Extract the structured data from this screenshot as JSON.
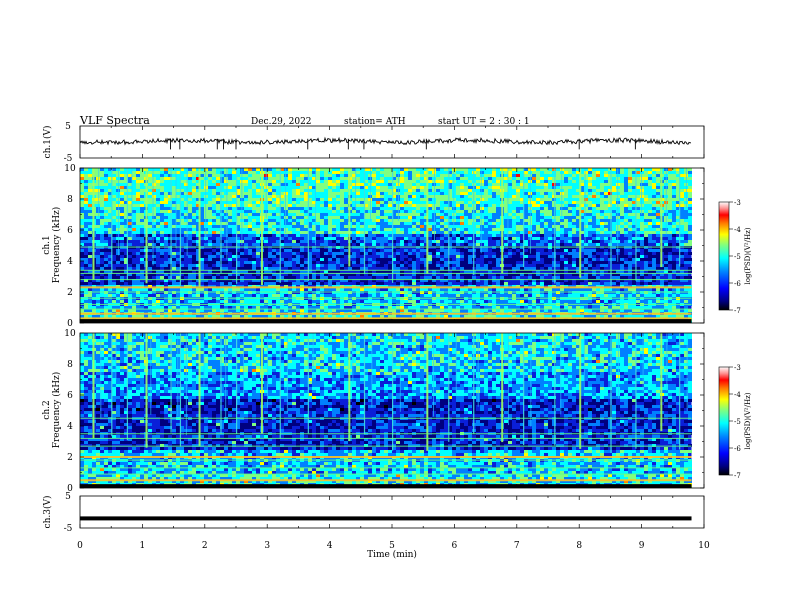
{
  "header": {
    "title": "VLF  Spectra",
    "date": "Dec.29, 2022",
    "station": "station= ATH",
    "start_ut": "start  UT  =   2  : 30 : 1"
  },
  "colorbar_colors": [
    "#000000",
    "#00007f",
    "#0000ff",
    "#0080ff",
    "#00ffff",
    "#80ff80",
    "#ffff00",
    "#ff8000",
    "#ff0000",
    "#7f0000",
    "#ffffff"
  ],
  "chart_data": [
    {
      "type": "line",
      "name": "ch1-waveform",
      "ylabel": "ch.1(V)",
      "ylim": [
        -5,
        5
      ],
      "yticks": [
        "5",
        "-5"
      ],
      "x_range_min": [
        0,
        9.8
      ],
      "mean_value": 0.2,
      "spikes_min": [
        1.45,
        1.6,
        2.2,
        2.3,
        2.5,
        3.65,
        4.3,
        4.55,
        5.55,
        8.0,
        8.9
      ]
    },
    {
      "type": "heatmap",
      "name": "ch1-spectrogram",
      "ylabel": "ch.1\nFrequency  (kHz)",
      "ylim": [
        0,
        10
      ],
      "yticks": [
        "0",
        "2",
        "4",
        "6",
        "8",
        "10"
      ],
      "x_range_min": [
        0,
        9.8
      ],
      "colorbar": {
        "label": "log(PSD)(V²/Hz)",
        "range": [
          -7,
          -3
        ],
        "ticks": [
          "-3",
          "-4",
          "-5",
          "-6",
          "-7"
        ]
      },
      "lines_khz": [
        0.3,
        0.6,
        0.9,
        1.2,
        1.6,
        2.0,
        2.3,
        2.8,
        3.2,
        3.4,
        4.9
      ],
      "strong_lines_khz": [
        0.3,
        0.6,
        2.3
      ],
      "sferic_times_min": [
        0.2,
        0.5,
        0.75,
        1.05,
        1.45,
        1.6,
        1.9,
        2.25,
        2.5,
        2.9,
        3.2,
        3.65,
        4.3,
        4.55,
        5.0,
        5.55,
        5.9,
        6.3,
        6.75,
        7.1,
        7.6,
        8.0,
        8.5,
        8.9,
        9.3,
        9.6
      ]
    },
    {
      "type": "heatmap",
      "name": "ch2-spectrogram",
      "ylabel": "ch.2\nFrequency  (kHz)",
      "ylim": [
        0,
        10
      ],
      "yticks": [
        "0",
        "2",
        "4",
        "6",
        "8",
        "10"
      ],
      "x_range_min": [
        0,
        9.8
      ],
      "colorbar": {
        "label": "log(PSD)(V²/Hz)",
        "range": [
          -7,
          -3
        ],
        "ticks": [
          "-3",
          "-4",
          "-5",
          "-6",
          "-7"
        ]
      },
      "lines_khz": [
        0.5,
        0.9,
        1.3,
        1.8,
        2.0,
        2.7,
        3.2,
        3.5,
        4.5
      ],
      "strong_lines_khz": [
        0.5,
        2.0
      ],
      "sferic_times_min": [
        0.2,
        0.5,
        0.75,
        1.05,
        1.45,
        1.6,
        1.9,
        2.25,
        2.5,
        2.9,
        3.2,
        3.65,
        4.3,
        4.55,
        5.0,
        5.55,
        5.9,
        6.3,
        6.75,
        7.1,
        7.6,
        8.0,
        8.5,
        8.9,
        9.3,
        9.6
      ]
    },
    {
      "type": "line",
      "name": "ch3-waveform",
      "ylabel": "ch.3(V)",
      "ylim": [
        -5,
        5
      ],
      "yticks": [
        "5",
        "-5"
      ],
      "x_range_min": [
        0,
        9.8
      ],
      "mean_value": -2.0
    }
  ],
  "xaxis": {
    "label": "Time  (min)",
    "ticks": [
      "0",
      "1",
      "2",
      "3",
      "4",
      "5",
      "6",
      "7",
      "8",
      "9",
      "10"
    ],
    "range": [
      0,
      10
    ]
  }
}
